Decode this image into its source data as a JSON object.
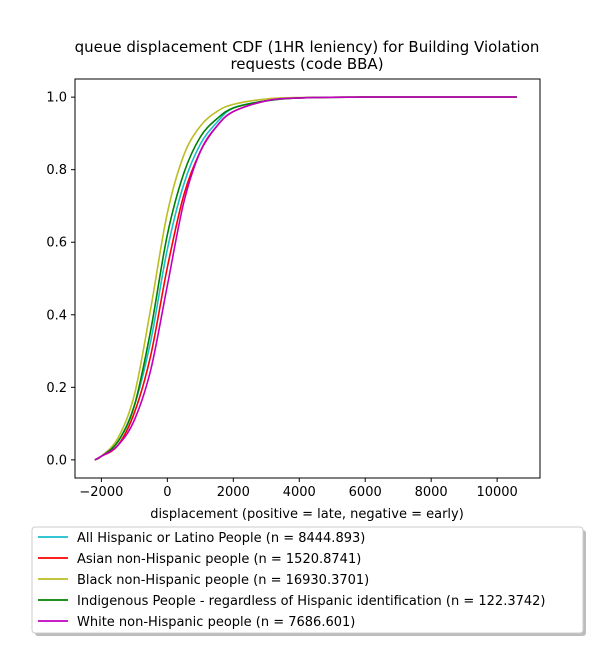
{
  "chart_data": {
    "type": "line",
    "title": [
      "queue displacement CDF (1HR leniency) for Building Violation",
      "requests (code BBA)"
    ],
    "xlabel": "displacement (positive = late, negative = early)",
    "ylabel": "",
    "xlim": [
      -2800,
      11300
    ],
    "ylim": [
      -0.05,
      1.05
    ],
    "xticks": [
      -2000,
      0,
      2000,
      4000,
      6000,
      8000,
      10000
    ],
    "yticks": [
      0.0,
      0.2,
      0.4,
      0.6,
      0.8,
      1.0
    ],
    "xtick_labels": [
      "−2000",
      "0",
      "2000",
      "4000",
      "6000",
      "8000",
      "10000"
    ],
    "ytick_labels": [
      "0.0",
      "0.2",
      "0.4",
      "0.6",
      "0.8",
      "1.0"
    ],
    "grid": false,
    "legend_position": "below plot",
    "series": [
      {
        "name": "All Hispanic or Latino People (n = 8444.893)",
        "color": "#17becf",
        "x": [
          -2200,
          -2000,
          -1500,
          -1000,
          -500,
          0,
          500,
          1000,
          1500,
          2000,
          3000,
          4000,
          6000,
          8000,
          10600
        ],
        "y": [
          0.0,
          0.01,
          0.05,
          0.15,
          0.33,
          0.58,
          0.76,
          0.87,
          0.93,
          0.97,
          0.99,
          0.998,
          1.0,
          1.0,
          1.0
        ]
      },
      {
        "name": "Asian non-Hispanic people (n = 1520.8741)",
        "color": "#ff0000",
        "x": [
          -2200,
          -2000,
          -1500,
          -1000,
          -500,
          0,
          500,
          1000,
          1500,
          2000,
          3000,
          4000,
          6000,
          8000,
          10600
        ],
        "y": [
          0.0,
          0.01,
          0.04,
          0.13,
          0.29,
          0.53,
          0.73,
          0.85,
          0.92,
          0.96,
          0.99,
          0.998,
          1.0,
          1.0,
          1.0
        ]
      },
      {
        "name": "Black non-Hispanic people (n = 16930.3701)",
        "color": "#bcbd22",
        "x": [
          -2200,
          -2000,
          -1500,
          -1000,
          -500,
          0,
          500,
          1000,
          1500,
          2000,
          3000,
          4000,
          6000,
          8000,
          10600
        ],
        "y": [
          0.0,
          0.01,
          0.06,
          0.18,
          0.42,
          0.68,
          0.84,
          0.92,
          0.96,
          0.98,
          0.995,
          0.999,
          1.0,
          1.0,
          1.0
        ]
      },
      {
        "name": "Indigenous People - regardless of Hispanic identification (n = 122.3742)",
        "color": "#008000",
        "x": [
          -2200,
          -2000,
          -1500,
          -1000,
          -500,
          0,
          500,
          1000,
          1500,
          2000,
          3000,
          4000,
          6000,
          8000,
          10600
        ],
        "y": [
          0.0,
          0.01,
          0.05,
          0.15,
          0.36,
          0.62,
          0.79,
          0.89,
          0.94,
          0.97,
          0.99,
          0.998,
          1.0,
          1.0,
          1.0
        ]
      },
      {
        "name": "White non-Hispanic people (n = 7686.601)",
        "color": "#c000c0",
        "x": [
          -2200,
          -2000,
          -1500,
          -1000,
          -500,
          0,
          500,
          1000,
          1500,
          2000,
          3000,
          4000,
          6000,
          8000,
          10600
        ],
        "y": [
          0.0,
          0.01,
          0.04,
          0.11,
          0.25,
          0.48,
          0.71,
          0.85,
          0.92,
          0.96,
          0.99,
          0.998,
          1.0,
          1.0,
          1.0
        ]
      }
    ]
  }
}
